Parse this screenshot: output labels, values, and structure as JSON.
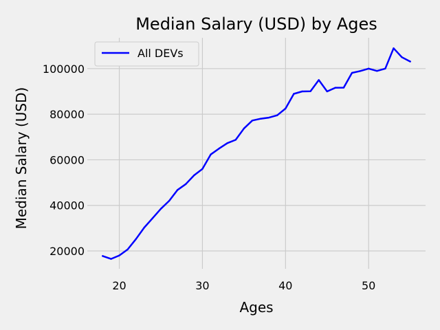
{
  "chart_data": {
    "type": "line",
    "title": "Median Salary (USD) by Ages",
    "xlabel": "Ages",
    "ylabel": "Median Salary (USD)",
    "xlim": [
      16.15,
      56.85
    ],
    "ylim": [
      12160,
      113520
    ],
    "xticks": [
      20,
      30,
      40,
      50
    ],
    "yticks": [
      20000,
      40000,
      60000,
      80000,
      100000
    ],
    "grid": true,
    "legend_position": "upper-left",
    "x": [
      18,
      19,
      20,
      21,
      22,
      23,
      24,
      25,
      26,
      27,
      28,
      29,
      30,
      31,
      32,
      33,
      34,
      35,
      36,
      37,
      38,
      39,
      40,
      41,
      42,
      43,
      44,
      45,
      46,
      47,
      48,
      49,
      50,
      51,
      52,
      53,
      54,
      55
    ],
    "series": [
      {
        "name": "All DEVs",
        "color": "#0000ff",
        "values": [
          17784,
          16500,
          18012,
          20628,
          25206,
          30252,
          34368,
          38496,
          42000,
          46752,
          49320,
          53200,
          56000,
          62316,
          64928,
          67317,
          68748,
          73752,
          77232,
          78000,
          78508,
          79536,
          82488,
          88935,
          90000,
          90056,
          95000,
          90000,
          91633,
          91660,
          98150,
          98964,
          100000,
          98988,
          100000,
          108923,
          105000,
          103117
        ]
      }
    ]
  }
}
